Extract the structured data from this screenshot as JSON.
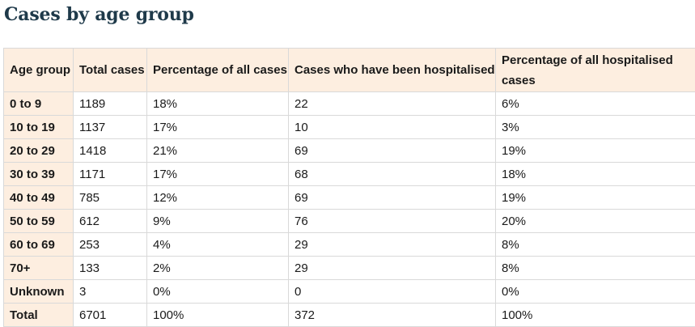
{
  "title": "Cases by age group",
  "table": {
    "headers": [
      "Age group",
      "Total cases",
      "Percentage of all cases",
      "Cases who have been hospitalised",
      "Percentage of all hospitalised cases"
    ],
    "rows": [
      [
        "0 to 9",
        "1189",
        "18%",
        "22",
        "6%"
      ],
      [
        "10 to 19",
        "1137",
        "17%",
        "10",
        "3%"
      ],
      [
        "20 to 29",
        "1418",
        "21%",
        "69",
        "19%"
      ],
      [
        "30 to 39",
        "1171",
        "17%",
        "68",
        "18%"
      ],
      [
        "40 to 49",
        "785",
        "12%",
        "69",
        "19%"
      ],
      [
        "50 to 59",
        "612",
        "9%",
        "76",
        "20%"
      ],
      [
        "60 to 69",
        "253",
        "4%",
        "29",
        "8%"
      ],
      [
        "70+",
        "133",
        "2%",
        "29",
        "8%"
      ],
      [
        "Unknown",
        "3",
        "0%",
        "0",
        "0%"
      ],
      [
        "Total",
        "6701",
        "100%",
        "372",
        "100%"
      ]
    ]
  },
  "colors": {
    "title": "#1f3a4a",
    "header_background": "#fdeee0",
    "border": "#d9d9d9"
  }
}
